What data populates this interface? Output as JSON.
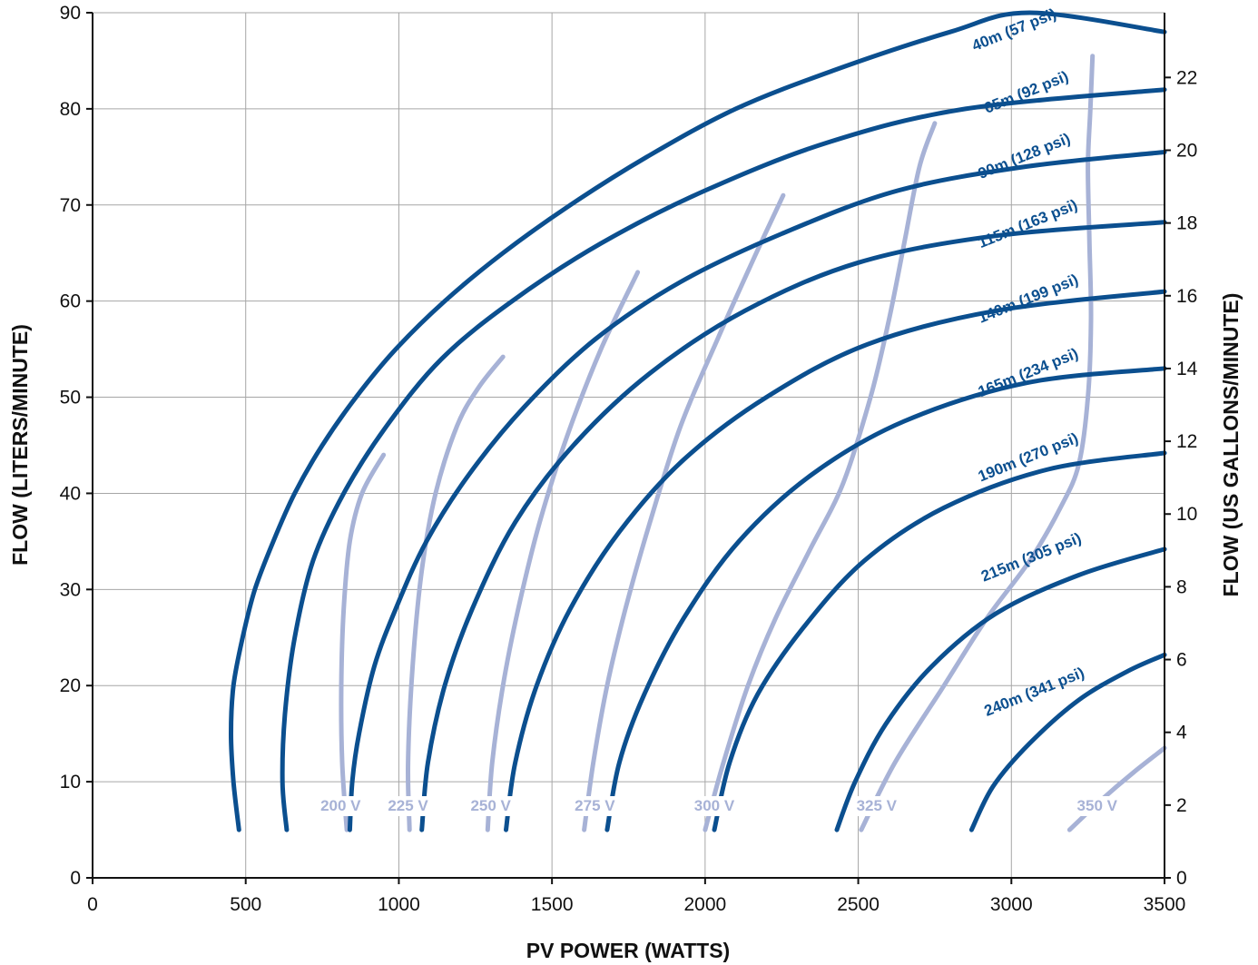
{
  "chart_data": {
    "type": "line",
    "xlabel": "PV POWER (WATTS)",
    "ylabel_left": "FLOW (LITERS/MINUTE)",
    "ylabel_right": "FLOW (US GALLONS/MINUTE)",
    "xlim": [
      0,
      3500
    ],
    "ylim": [
      0,
      90
    ],
    "ylim_right": [
      0,
      23.78
    ],
    "x_ticks": [
      0,
      500,
      1000,
      1500,
      2000,
      2500,
      3000,
      3500
    ],
    "y_ticks": [
      0,
      10,
      20,
      30,
      40,
      50,
      60,
      70,
      80,
      90
    ],
    "y_right_ticks": [
      0,
      2,
      4,
      6,
      8,
      10,
      12,
      14,
      16,
      18,
      20,
      22
    ],
    "grid": true,
    "legend": "none",
    "colors": {
      "head_curves": "#0b4f8f",
      "voltage_curves": "#a7b2d6"
    },
    "series_head": [
      {
        "name": "40m (57 psi)",
        "points": [
          [
            478,
            5
          ],
          [
            460,
            10
          ],
          [
            452,
            15
          ],
          [
            460,
            20
          ],
          [
            490,
            25
          ],
          [
            530,
            30
          ],
          [
            590,
            35
          ],
          [
            660,
            40
          ],
          [
            750,
            45
          ],
          [
            860,
            50
          ],
          [
            990,
            55
          ],
          [
            1150,
            60
          ],
          [
            1340,
            65
          ],
          [
            1560,
            70
          ],
          [
            1810,
            75
          ],
          [
            2100,
            80
          ],
          [
            2420,
            84
          ],
          [
            2800,
            88
          ],
          [
            3060,
            90
          ],
          [
            3500,
            88
          ]
        ]
      },
      {
        "name": "65m (92 psi)",
        "points": [
          [
            634,
            5
          ],
          [
            620,
            10
          ],
          [
            628,
            17
          ],
          [
            660,
            25
          ],
          [
            720,
            33
          ],
          [
            820,
            40
          ],
          [
            960,
            47
          ],
          [
            1140,
            54
          ],
          [
            1370,
            60
          ],
          [
            1660,
            66
          ],
          [
            2000,
            71.5
          ],
          [
            2400,
            76.5
          ],
          [
            2850,
            80
          ],
          [
            3500,
            82
          ]
        ]
      },
      {
        "name": "90m (128 psi)",
        "points": [
          [
            840,
            5
          ],
          [
            848,
            10
          ],
          [
            870,
            15
          ],
          [
            920,
            22
          ],
          [
            990,
            28
          ],
          [
            1090,
            35
          ],
          [
            1230,
            42
          ],
          [
            1410,
            49
          ],
          [
            1640,
            56
          ],
          [
            1920,
            62
          ],
          [
            2250,
            67
          ],
          [
            2630,
            71.5
          ],
          [
            3050,
            74
          ],
          [
            3500,
            75.5
          ]
        ]
      },
      {
        "name": "115m (163 psi)",
        "points": [
          [
            1075,
            5
          ],
          [
            1095,
            12
          ],
          [
            1150,
            20
          ],
          [
            1240,
            28
          ],
          [
            1380,
            37
          ],
          [
            1570,
            45
          ],
          [
            1820,
            52.5
          ],
          [
            2130,
            59
          ],
          [
            2500,
            64
          ],
          [
            2950,
            66.8
          ],
          [
            3500,
            68.2
          ]
        ]
      },
      {
        "name": "140m (199 psi)",
        "points": [
          [
            1350,
            5
          ],
          [
            1380,
            12
          ],
          [
            1450,
            20
          ],
          [
            1560,
            28
          ],
          [
            1720,
            36
          ],
          [
            1930,
            43.5
          ],
          [
            2200,
            50
          ],
          [
            2530,
            55.5
          ],
          [
            2950,
            59
          ],
          [
            3500,
            61
          ]
        ]
      },
      {
        "name": "165m (234 psi)",
        "points": [
          [
            1680,
            5
          ],
          [
            1720,
            12
          ],
          [
            1800,
            19
          ],
          [
            1930,
            27
          ],
          [
            2110,
            35
          ],
          [
            2350,
            42
          ],
          [
            2650,
            47.5
          ],
          [
            3050,
            51.5
          ],
          [
            3500,
            53
          ]
        ]
      },
      {
        "name": "190m (270 psi)",
        "points": [
          [
            2030,
            5
          ],
          [
            2080,
            12
          ],
          [
            2170,
            19
          ],
          [
            2320,
            26
          ],
          [
            2520,
            33
          ],
          [
            2780,
            38.5
          ],
          [
            3120,
            42.5
          ],
          [
            3500,
            44.2
          ]
        ]
      },
      {
        "name": "215m (305 psi)",
        "points": [
          [
            2430,
            5
          ],
          [
            2490,
            10
          ],
          [
            2590,
            16
          ],
          [
            2740,
            22
          ],
          [
            2950,
            27.5
          ],
          [
            3220,
            31.5
          ],
          [
            3500,
            34.2
          ]
        ]
      },
      {
        "name": "240m (341 psi)",
        "points": [
          [
            2870,
            5
          ],
          [
            2940,
            9.5
          ],
          [
            3060,
            14
          ],
          [
            3220,
            18.5
          ],
          [
            3380,
            21.5
          ],
          [
            3500,
            23.2
          ]
        ]
      }
    ],
    "series_voltage": [
      {
        "name": "200 V",
        "points": [
          [
            830,
            5
          ],
          [
            815,
            12
          ],
          [
            812,
            20
          ],
          [
            820,
            28
          ],
          [
            840,
            35
          ],
          [
            880,
            40
          ],
          [
            950,
            44
          ]
        ]
      },
      {
        "name": "225 V",
        "points": [
          [
            1035,
            5
          ],
          [
            1030,
            12
          ],
          [
            1045,
            22
          ],
          [
            1075,
            32
          ],
          [
            1120,
            40
          ],
          [
            1190,
            47
          ],
          [
            1260,
            51
          ],
          [
            1340,
            54.2
          ]
        ]
      },
      {
        "name": "250 V",
        "points": [
          [
            1290,
            5
          ],
          [
            1305,
            12
          ],
          [
            1340,
            20
          ],
          [
            1390,
            28
          ],
          [
            1460,
            37
          ],
          [
            1550,
            46
          ],
          [
            1660,
            55
          ],
          [
            1780,
            63
          ]
        ]
      },
      {
        "name": "275 V",
        "points": [
          [
            1605,
            5
          ],
          [
            1635,
            12
          ],
          [
            1680,
            20
          ],
          [
            1740,
            28
          ],
          [
            1820,
            37
          ],
          [
            1920,
            47
          ],
          [
            2040,
            56
          ],
          [
            2160,
            64.5
          ],
          [
            2255,
            71
          ]
        ]
      },
      {
        "name": "300 V",
        "points": [
          [
            2000,
            5
          ],
          [
            2060,
            12
          ],
          [
            2140,
            20
          ],
          [
            2230,
            27
          ],
          [
            2340,
            34
          ],
          [
            2450,
            41
          ],
          [
            2540,
            50
          ],
          [
            2600,
            58
          ],
          [
            2650,
            66
          ],
          [
            2700,
            74
          ],
          [
            2750,
            78.5
          ]
        ]
      },
      {
        "name": "325 V",
        "points": [
          [
            2510,
            5
          ],
          [
            2620,
            12
          ],
          [
            2780,
            20
          ],
          [
            2920,
            27
          ],
          [
            3060,
            33
          ],
          [
            3160,
            38.5
          ],
          [
            3220,
            43
          ],
          [
            3250,
            50
          ],
          [
            3260,
            58
          ],
          [
            3255,
            66
          ],
          [
            3250,
            74
          ],
          [
            3258,
            80
          ],
          [
            3265,
            85.5
          ]
        ]
      },
      {
        "name": "350 V",
        "points": [
          [
            3190,
            5
          ],
          [
            3290,
            8
          ],
          [
            3400,
            11
          ],
          [
            3500,
            13.5
          ]
        ]
      }
    ],
    "label_head": [
      "40m (57 psi)",
      "65m (92 psi)",
      "90m (128 psi)",
      "115m (163 psi)",
      "140m (199 psi)",
      "165m (234 psi)",
      "190m (270 psi)",
      "215m (305 psi)",
      "240m (341 psi)"
    ],
    "label_voltage": [
      "200 V",
      "225 V",
      "250 V",
      "275 V",
      "300 V",
      "325 V",
      "350 V"
    ]
  }
}
